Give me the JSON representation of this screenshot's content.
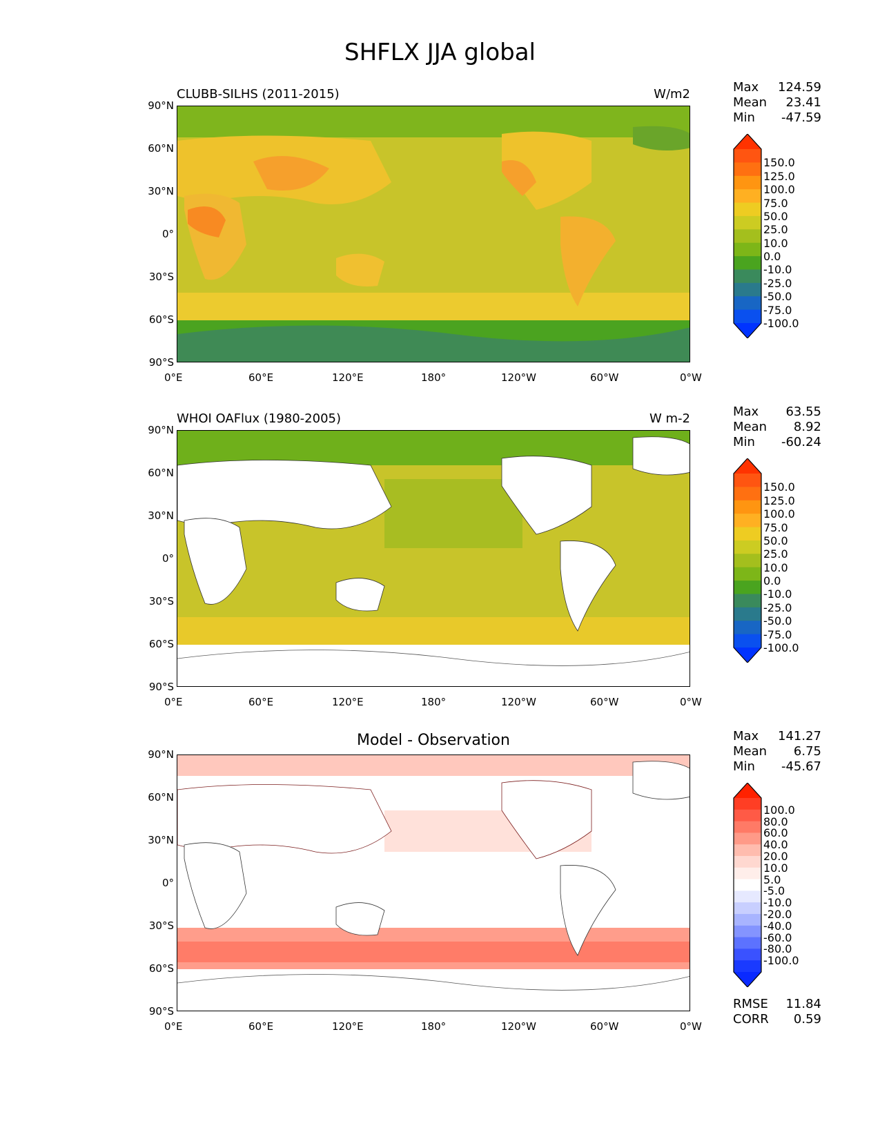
{
  "title": "SHFLX JJA global",
  "axes": {
    "lat_labels": [
      "90°N",
      "60°N",
      "30°N",
      "0°",
      "30°S",
      "60°S",
      "90°S"
    ],
    "lon_labels": [
      "0°E",
      "60°E",
      "120°E",
      "180°",
      "120°W",
      "60°W",
      "0°W"
    ]
  },
  "panels": [
    {
      "left_title": "CLUBB-SILHS (2011-2015)",
      "center_title": "",
      "right_title": "W/m2",
      "stats": {
        "max_label": "Max",
        "max": "124.59",
        "mean_label": "Mean",
        "mean": "23.41",
        "min_label": "Min",
        "min": "-47.59"
      },
      "colorbar_labels": [
        "150.0",
        "125.0",
        "100.0",
        "75.0",
        "50.0",
        "25.0",
        "10.0",
        "0.0",
        "-10.0",
        "-25.0",
        "-50.0",
        "-75.0",
        "-100.0"
      ],
      "colorbar_colors": [
        "#ff3300",
        "#ff5511",
        "#ff7011",
        "#ff9511",
        "#ffb022",
        "#eecc22",
        "#cccc22",
        "#a4bf1d",
        "#7db618",
        "#4aa41f",
        "#3a8a5c",
        "#2a7a8c",
        "#1866c4",
        "#0a50ef",
        "#0033ff"
      ]
    },
    {
      "left_title": "WHOI OAFlux (1980-2005)",
      "center_title": "",
      "right_title": "W m-2",
      "stats": {
        "max_label": "Max",
        "max": "63.55",
        "mean_label": "Mean",
        "mean": "8.92",
        "min_label": "Min",
        "min": "-60.24"
      },
      "colorbar_labels": [
        "150.0",
        "125.0",
        "100.0",
        "75.0",
        "50.0",
        "25.0",
        "10.0",
        "0.0",
        "-10.0",
        "-25.0",
        "-50.0",
        "-75.0",
        "-100.0"
      ],
      "colorbar_colors": [
        "#ff3300",
        "#ff5511",
        "#ff7011",
        "#ff9511",
        "#ffb022",
        "#eecc22",
        "#cccc22",
        "#a4bf1d",
        "#7db618",
        "#4aa41f",
        "#3a8a5c",
        "#2a7a8c",
        "#1866c4",
        "#0a50ef",
        "#0033ff"
      ]
    },
    {
      "left_title": "",
      "center_title": "Model - Observation",
      "right_title": "",
      "stats": {
        "max_label": "Max",
        "max": "141.27",
        "mean_label": "Mean",
        "mean": "6.75",
        "min_label": "Min",
        "min": "-45.67"
      },
      "colorbar_labels": [
        "100.0",
        "80.0",
        "60.0",
        "40.0",
        "20.0",
        "10.0",
        "5.0",
        "-5.0",
        "-10.0",
        "-20.0",
        "-40.0",
        "-60.0",
        "-80.0",
        "-100.0"
      ],
      "colorbar_colors": [
        "#ff2200",
        "#ff3e24",
        "#ff5a46",
        "#ff7a66",
        "#ff9a88",
        "#ffbcae",
        "#ffd8d0",
        "#ffeeea",
        "#ffffff",
        "#e6e9ff",
        "#c8cfff",
        "#a8b4ff",
        "#8494ff",
        "#5c72ff",
        "#3a52ff",
        "#1a3aff",
        "#0a2aff"
      ]
    }
  ],
  "metrics": {
    "rmse_label": "RMSE",
    "rmse": "11.84",
    "corr_label": "CORR",
    "corr": "0.59"
  }
}
